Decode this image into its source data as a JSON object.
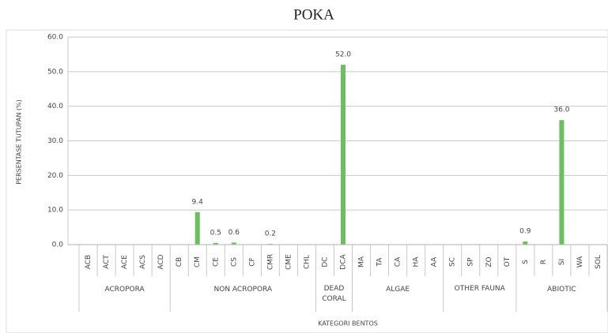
{
  "chart_data": {
    "type": "bar",
    "title": "POKA",
    "y_label": "PERSENTASE TUTUPAN (%)",
    "x_label": "KATEGORI BENTOS",
    "color": "#6cbf5e",
    "grid": true,
    "ylim": [
      0,
      60
    ],
    "yticks": [
      {
        "value": 0,
        "label": "0.0"
      },
      {
        "value": 10,
        "label": "10.0"
      },
      {
        "value": 20,
        "label": "20.0"
      },
      {
        "value": 30,
        "label": "30.0"
      },
      {
        "value": 40,
        "label": "40.0"
      },
      {
        "value": 50,
        "label": "50.0"
      },
      {
        "value": 60,
        "label": "60.0"
      }
    ],
    "groups": [
      {
        "label": "ACROPORA",
        "categories": [
          "ACB",
          "ACT",
          "ACE",
          "ACS",
          "ACD"
        ],
        "values": [
          0,
          0,
          0,
          0,
          0
        ],
        "value_labels": [
          null,
          null,
          null,
          null,
          null
        ]
      },
      {
        "label": "NON ACROPORA",
        "categories": [
          "CB",
          "CM",
          "CE",
          "CS",
          "CF",
          "CMR",
          "CME",
          "CHL"
        ],
        "values": [
          0,
          9.4,
          0.5,
          0.6,
          0,
          0.2,
          0,
          0
        ],
        "value_labels": [
          null,
          "9.4",
          "0.5",
          "0.6",
          null,
          "0.2",
          null,
          null
        ]
      },
      {
        "label": "DEAD CORAL",
        "categories": [
          "DC",
          "DCA"
        ],
        "values": [
          0,
          52
        ],
        "value_labels": [
          null,
          "52.0"
        ]
      },
      {
        "label": "ALGAE",
        "categories": [
          "MA",
          "TA",
          "CA",
          "HA",
          "AA"
        ],
        "values": [
          0,
          0,
          0,
          0,
          0
        ],
        "value_labels": [
          null,
          null,
          null,
          null,
          null
        ]
      },
      {
        "label": "OTHER FAUNA",
        "categories": [
          "SC",
          "SP",
          "ZO",
          "OT"
        ],
        "values": [
          0,
          0,
          0,
          0
        ],
        "value_labels": [
          null,
          null,
          null,
          null
        ]
      },
      {
        "label": "ABIOTIC",
        "categories": [
          "S",
          "R",
          "SI",
          "WA",
          "SOL"
        ],
        "values": [
          0.9,
          0,
          36,
          0,
          0
        ],
        "value_labels": [
          "0.9",
          null,
          "36.0",
          null,
          null
        ]
      }
    ]
  }
}
